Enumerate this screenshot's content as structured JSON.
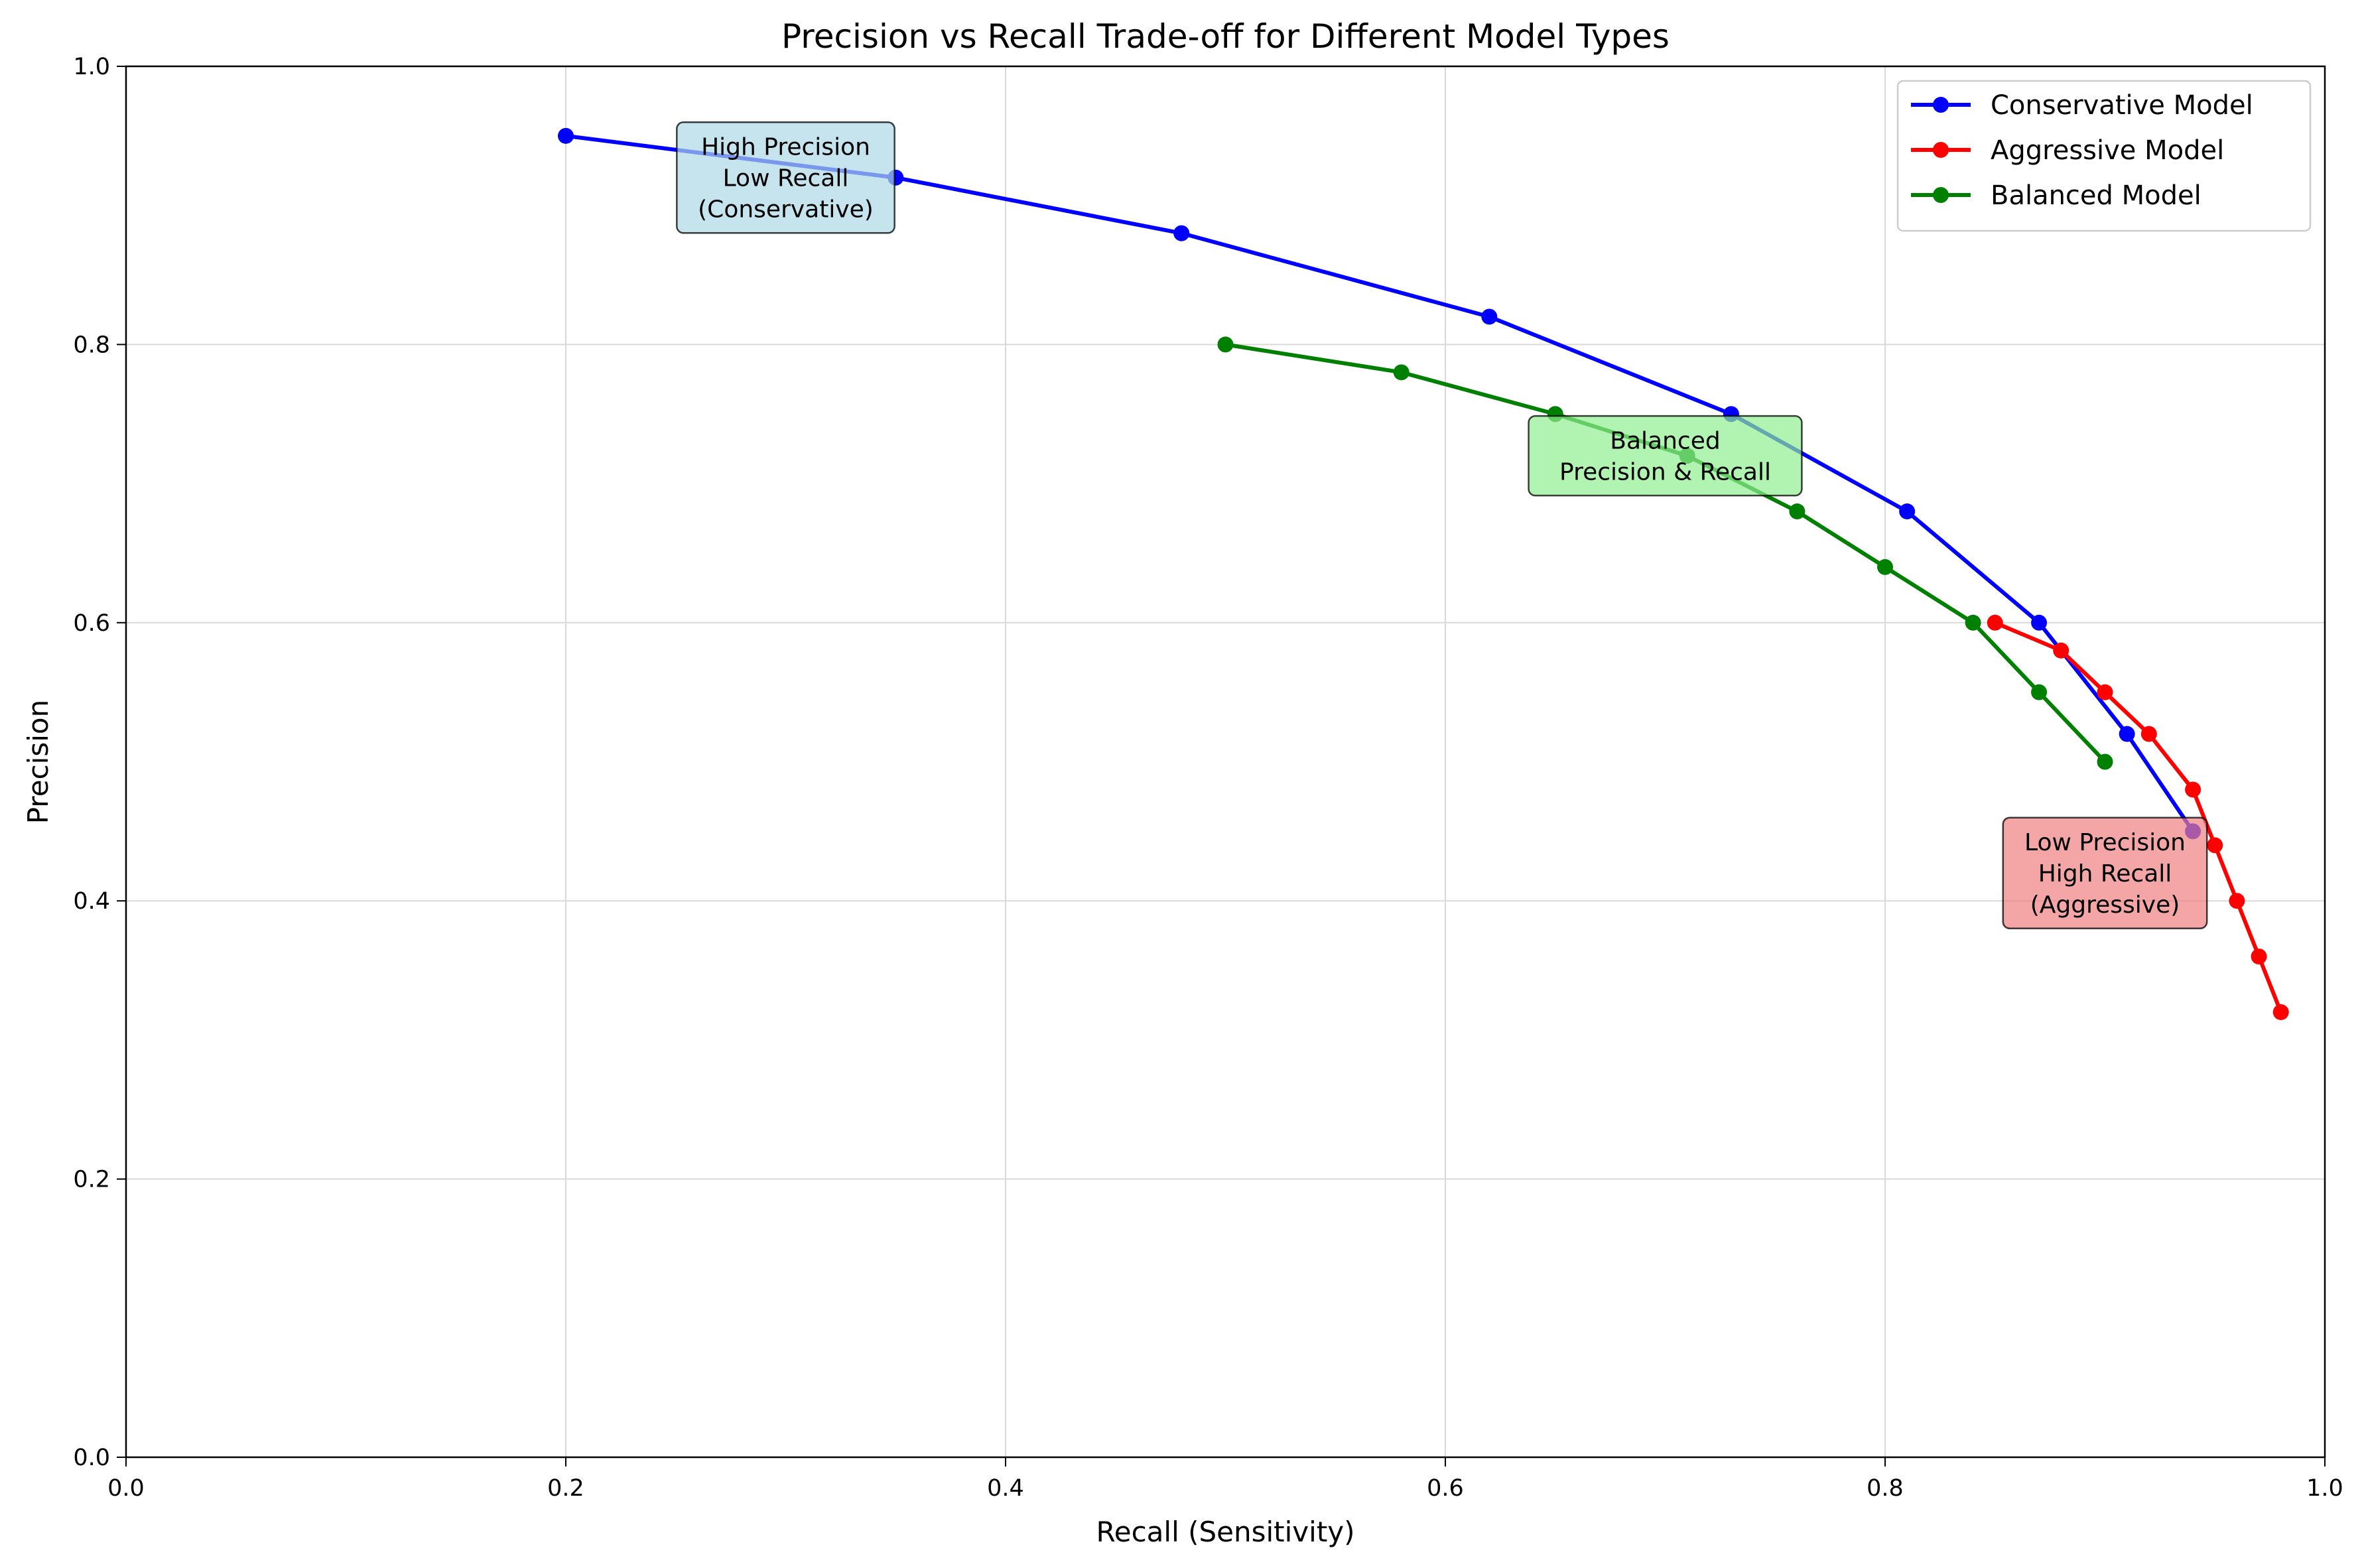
{
  "chart_data": {
    "type": "line",
    "title": "Precision vs Recall Trade-off for Different Model Types",
    "xlabel": "Recall (Sensitivity)",
    "ylabel": "Precision",
    "xlim": [
      0.0,
      1.0
    ],
    "ylim": [
      0.0,
      1.0
    ],
    "xticks": [
      "0.0",
      "0.2",
      "0.4",
      "0.6",
      "0.8",
      "1.0"
    ],
    "yticks": [
      "0.0",
      "0.2",
      "0.4",
      "0.6",
      "0.8",
      "1.0"
    ],
    "grid": true,
    "legend_position": "top-right",
    "series": [
      {
        "name": "Conservative Model",
        "color": "#0000ff",
        "x": [
          0.2,
          0.35,
          0.48,
          0.62,
          0.73,
          0.81,
          0.87,
          0.91,
          0.94
        ],
        "y": [
          0.95,
          0.92,
          0.88,
          0.82,
          0.75,
          0.68,
          0.6,
          0.52,
          0.45
        ]
      },
      {
        "name": "Aggressive Model",
        "color": "#ff0000",
        "x": [
          0.85,
          0.88,
          0.9,
          0.92,
          0.94,
          0.95,
          0.96,
          0.97,
          0.98
        ],
        "y": [
          0.6,
          0.58,
          0.55,
          0.52,
          0.48,
          0.44,
          0.4,
          0.36,
          0.32
        ]
      },
      {
        "name": "Balanced Model",
        "color": "#008000",
        "x": [
          0.5,
          0.58,
          0.65,
          0.71,
          0.76,
          0.8,
          0.84,
          0.87,
          0.9
        ],
        "y": [
          0.8,
          0.78,
          0.75,
          0.72,
          0.68,
          0.64,
          0.6,
          0.55,
          0.5
        ]
      }
    ],
    "annotations": [
      {
        "lines": [
          "High Precision",
          "Low Recall",
          "(Conservative)"
        ],
        "x": 0.3,
        "y": 0.92,
        "bg": "#add8e6"
      },
      {
        "lines": [
          "Balanced",
          "Precision & Recall"
        ],
        "x": 0.7,
        "y": 0.72,
        "bg": "#90ee90"
      },
      {
        "lines": [
          "Low Precision",
          "High Recall",
          "(Aggressive)"
        ],
        "x": 0.9,
        "y": 0.42,
        "bg": "#f08080"
      }
    ]
  }
}
